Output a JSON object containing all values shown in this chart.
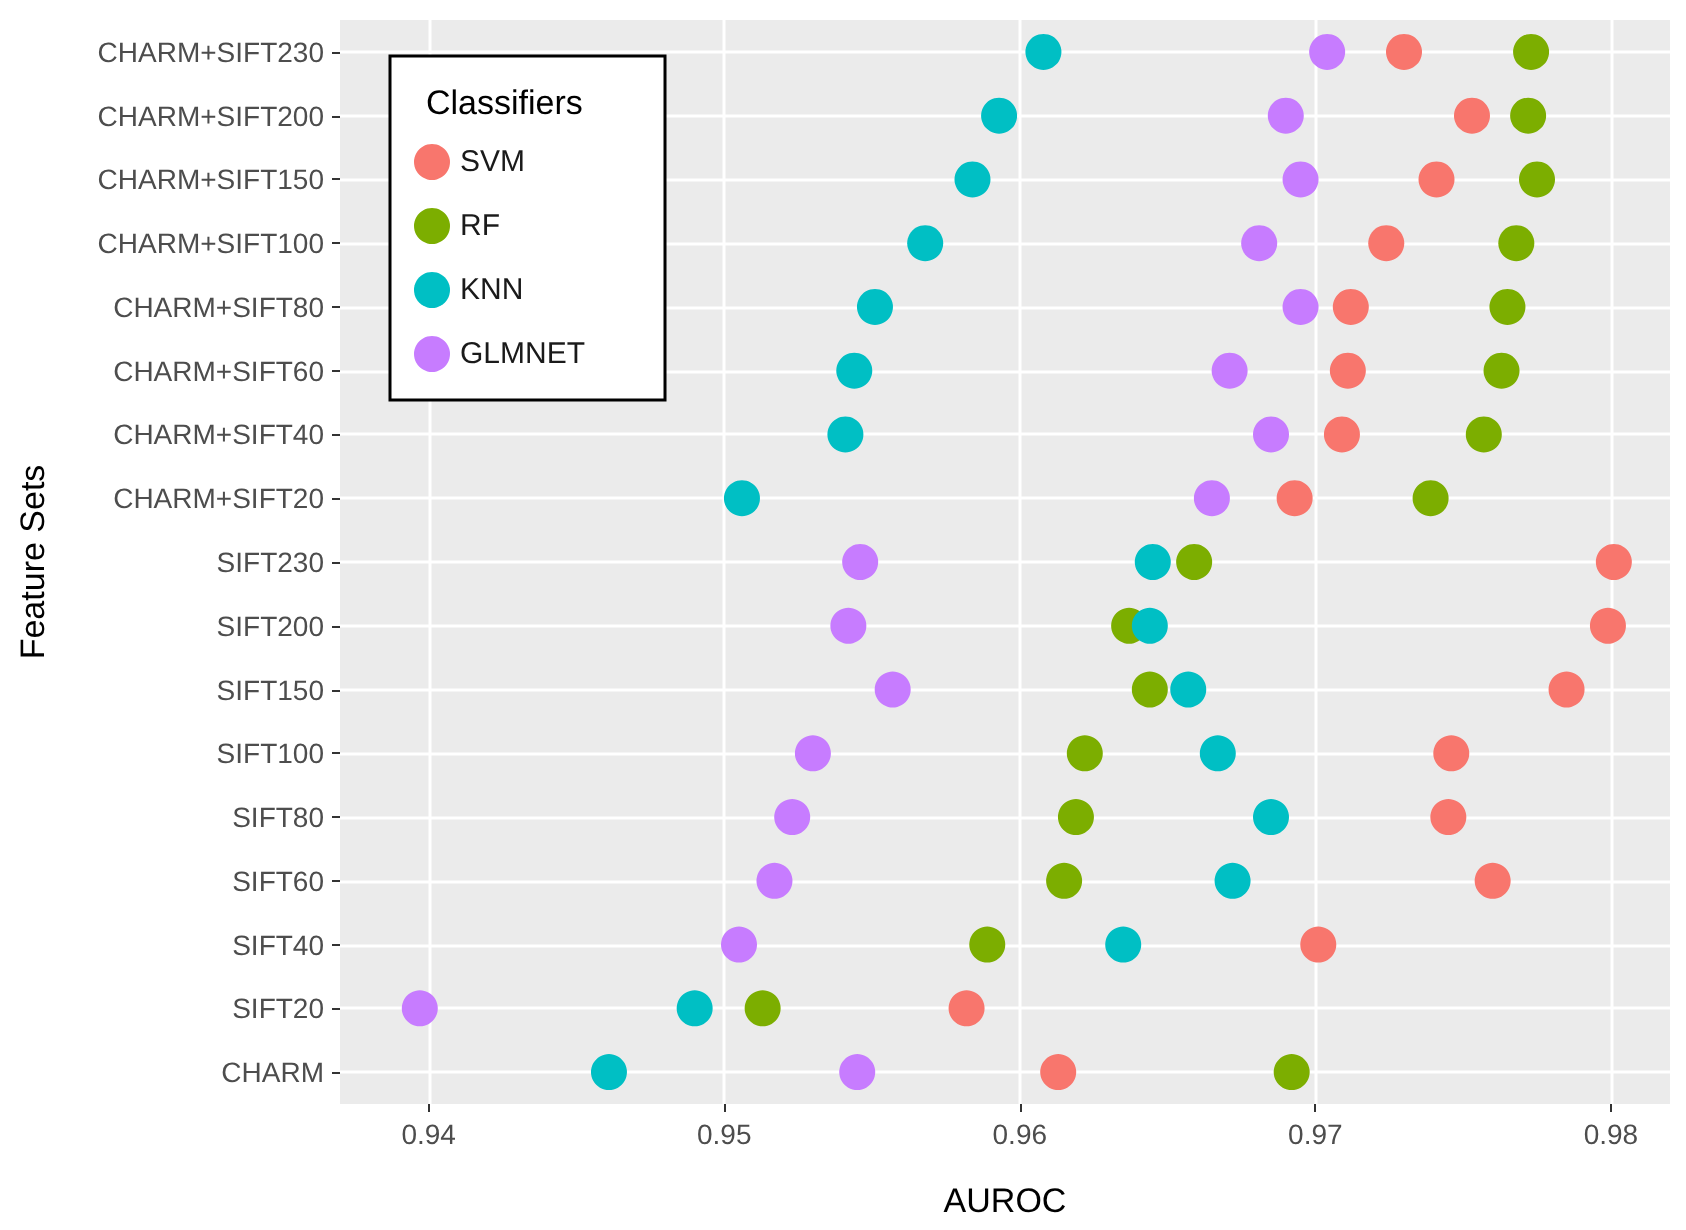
{
  "chart_data": {
    "type": "scatter",
    "xlabel": "AUROC",
    "ylabel": "Feature Sets",
    "legend_title": "Classifiers",
    "categories": [
      "CHARM+SIFT230",
      "CHARM+SIFT200",
      "CHARM+SIFT150",
      "CHARM+SIFT100",
      "CHARM+SIFT80",
      "CHARM+SIFT60",
      "CHARM+SIFT40",
      "CHARM+SIFT20",
      "SIFT230",
      "SIFT200",
      "SIFT150",
      "SIFT100",
      "SIFT80",
      "SIFT60",
      "SIFT40",
      "SIFT20",
      "CHARM"
    ],
    "series": [
      {
        "name": "SVM",
        "color": "#f8766d",
        "values": [
          0.973,
          0.9753,
          0.9741,
          0.9724,
          0.9712,
          0.9711,
          0.9709,
          0.9693,
          0.9801,
          0.9799,
          0.9785,
          0.9746,
          0.9745,
          0.976,
          0.9701,
          0.9582,
          0.9613
        ]
      },
      {
        "name": "RF",
        "color": "#7cae00",
        "values": [
          0.9773,
          0.9772,
          0.9775,
          0.9768,
          0.9765,
          0.9763,
          0.9757,
          0.9739,
          0.9659,
          0.9637,
          0.9644,
          0.9622,
          0.9619,
          0.9615,
          0.9589,
          0.9513,
          0.9692
        ]
      },
      {
        "name": "KNN",
        "color": "#00bfc4",
        "values": [
          0.9608,
          0.9593,
          0.9584,
          0.9568,
          0.9551,
          0.9544,
          0.9541,
          0.9506,
          0.9645,
          0.9644,
          0.9657,
          0.9667,
          0.9685,
          0.9672,
          0.9635,
          0.949,
          0.9461
        ]
      },
      {
        "name": "GLMNET",
        "color": "#c77cff",
        "values": [
          0.9704,
          0.969,
          0.9695,
          0.9681,
          0.9695,
          0.9671,
          0.9685,
          0.9665,
          0.9546,
          0.9542,
          0.9557,
          0.953,
          0.9523,
          0.9517,
          0.9505,
          0.9397,
          0.9545
        ]
      }
    ],
    "xlim": [
      0.937,
      0.982
    ],
    "xticks": [
      0.94,
      0.95,
      0.96,
      0.97,
      0.98
    ],
    "orientation": "horizontal",
    "grid": true,
    "legend": "top left",
    "marker": "circle"
  }
}
